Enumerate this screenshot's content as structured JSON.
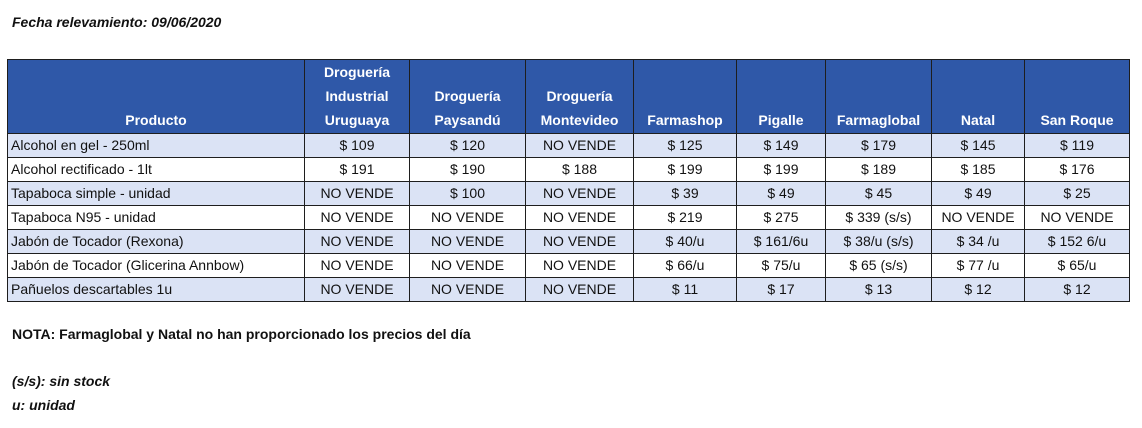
{
  "survey_date": "Fecha relevamiento: 09/06/2020",
  "table": {
    "headers": [
      "Producto",
      "Droguería Industrial Uruguaya",
      "Droguería Paysandú",
      "Droguería Montevideo",
      "Farmashop",
      "Pigalle",
      "Farmaglobal",
      "Natal",
      "San Roque"
    ],
    "rows": [
      [
        "Alcohol en gel  - 250ml",
        "$ 109",
        "$ 120",
        "NO VENDE",
        "$ 125",
        "$ 149",
        "$ 179",
        "$ 145",
        "$ 119"
      ],
      [
        "Alcohol rectificado - 1lt",
        "$ 191",
        "$ 190",
        "$ 188",
        "$ 199",
        "$ 199",
        "$ 189",
        "$ 185",
        "$ 176"
      ],
      [
        "Tapaboca simple - unidad",
        "NO VENDE",
        "$ 100",
        "NO VENDE",
        "$ 39",
        "$ 49",
        "$ 45",
        "$ 49",
        "$ 25"
      ],
      [
        "Tapaboca N95 - unidad",
        "NO VENDE",
        "NO VENDE",
        "NO VENDE",
        "$ 219",
        "$ 275",
        "$ 339 (s/s)",
        "NO VENDE",
        "NO VENDE"
      ],
      [
        "Jabón de Tocador (Rexona)",
        "NO VENDE",
        "NO VENDE",
        "NO VENDE",
        "$ 40/u",
        "$ 161/6u",
        "$ 38/u (s/s)",
        "$ 34 /u",
        "$ 152 6/u"
      ],
      [
        "Jabón de Tocador (Glicerina Annbow)",
        "NO VENDE",
        "NO VENDE",
        "NO VENDE",
        "$ 66/u",
        "$ 75/u",
        "$ 65 (s/s)",
        "$ 77 /u",
        "$ 65/u"
      ],
      [
        "Pañuelos descartables 1u",
        "NO VENDE",
        "NO VENDE",
        "NO VENDE",
        "$ 11",
        "$ 17",
        "$ 13",
        "$ 12",
        "$ 12"
      ]
    ]
  },
  "note": "NOTA: Farmaglobal y Natal no han proporcionado los precios del día",
  "legend": {
    "ss": "(s/s): sin stock",
    "u": "u: unidad"
  },
  "colors": {
    "header_bg": "#2f58a8",
    "header_text": "#ffffff",
    "band_row": "#dbe3f5",
    "plain_row": "#ffffff"
  }
}
